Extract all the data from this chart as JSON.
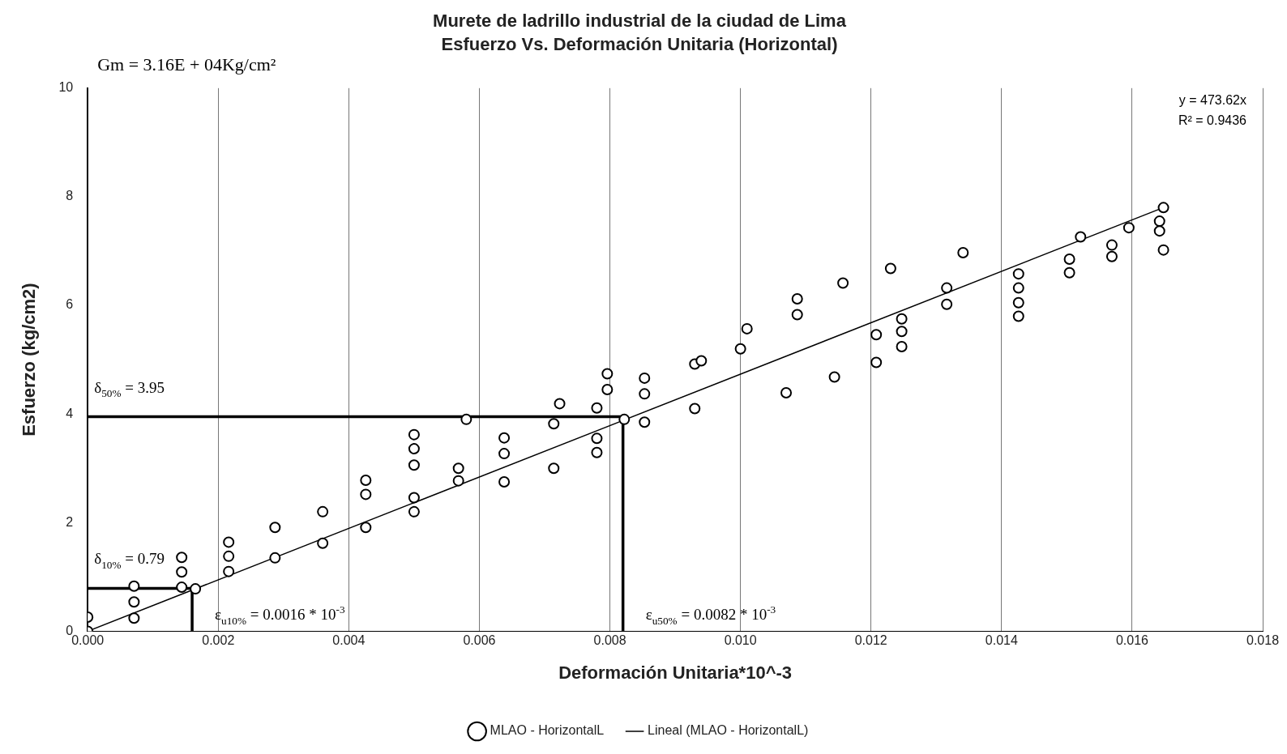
{
  "chart_data": {
    "type": "scatter",
    "title": "Murete de ladrillo industrial de la ciudad de Lima",
    "subtitle": "Esfuerzo Vs. Deformación Unitaria (Horizontal)",
    "xlabel": "Deformación Unitaria*10^-3",
    "ylabel": "Esfuerzo (kg/cm2)",
    "xlim": [
      0,
      0.018
    ],
    "xticks": [
      {
        "value": 0,
        "label": "0.000"
      },
      {
        "value": 0.002,
        "label": "0.002"
      },
      {
        "value": 0.004,
        "label": "0.004"
      },
      {
        "value": 0.006,
        "label": "0.006"
      },
      {
        "value": 0.008,
        "label": "0.008"
      },
      {
        "value": 0.01,
        "label": "0.010"
      },
      {
        "value": 0.012,
        "label": "0.012"
      },
      {
        "value": 0.014,
        "label": "0.014"
      },
      {
        "value": 0.016,
        "label": "0.016"
      },
      {
        "value": 0.018,
        "label": "0.018"
      }
    ],
    "ylim": [
      0,
      10
    ],
    "yticks": [
      0,
      2,
      4,
      6,
      8,
      10
    ],
    "grid": "x",
    "legend": "bottom",
    "series": [
      {
        "name": "MLAO - HorizontalL",
        "marker": "circle",
        "color": "#000000",
        "x": [
          0,
          0,
          0.00071,
          0.00071,
          0.00071,
          0.00144,
          0.00144,
          0.00144,
          0.00165,
          0.00216,
          0.00216,
          0.00216,
          0.00287,
          0.00287,
          0.0036,
          0.0036,
          0.00426,
          0.00426,
          0.00426,
          0.005,
          0.005,
          0.005,
          0.005,
          0.005,
          0.00568,
          0.00568,
          0.0058,
          0.00638,
          0.00638,
          0.00638,
          0.00714,
          0.00714,
          0.00723,
          0.0078,
          0.0078,
          0.0078,
          0.00796,
          0.00796,
          0.00822,
          0.00853,
          0.00853,
          0.00853,
          0.0093,
          0.0093,
          0.0094,
          0.01,
          0.0101,
          0.01087,
          0.01087,
          0.0107,
          0.01144,
          0.01157,
          0.01208,
          0.01208,
          0.0123,
          0.01247,
          0.01247,
          0.01247,
          0.01316,
          0.01316,
          0.01341,
          0.01426,
          0.01426,
          0.01426,
          0.01426,
          0.01504,
          0.01504,
          0.01521,
          0.01569,
          0.01569,
          0.01595,
          0.01642,
          0.01642,
          0.01648,
          0.01648
        ],
        "values": [
          0.26,
          0,
          0.83,
          0.54,
          0.24,
          1.36,
          1.09,
          0.81,
          0.78,
          1.64,
          1.38,
          1.1,
          1.91,
          1.35,
          2.2,
          1.62,
          2.78,
          2.52,
          1.91,
          3.62,
          3.36,
          3.06,
          2.46,
          2.2,
          3.0,
          2.77,
          3.9,
          3.56,
          3.27,
          2.75,
          3.0,
          3.82,
          4.19,
          4.11,
          3.55,
          3.29,
          4.74,
          4.45,
          3.9,
          4.66,
          4.37,
          3.85,
          4.92,
          4.1,
          4.98,
          5.2,
          5.57,
          6.12,
          5.83,
          4.39,
          4.68,
          6.41,
          5.46,
          4.95,
          6.68,
          5.75,
          5.52,
          5.24,
          6.32,
          6.02,
          6.97,
          6.58,
          6.32,
          6.05,
          5.8,
          6.85,
          6.6,
          7.26,
          7.11,
          6.9,
          7.43,
          7.55,
          7.37,
          7.8,
          7.02
        ]
      },
      {
        "name": "Lineal (MLAO - HorizontalL)",
        "type": "line",
        "color": "#000000",
        "x": [
          0,
          0.0165
        ],
        "values": [
          0,
          7.81
        ]
      },
      {
        "type": "line",
        "color": "#000000",
        "x": [
          0,
          0.0082,
          0.0082
        ],
        "values": [
          3.95,
          3.95,
          0
        ]
      },
      {
        "type": "line",
        "color": "#000000",
        "x": [
          0,
          0.0016,
          0.0016
        ],
        "values": [
          0.79,
          0.79,
          0
        ]
      }
    ],
    "annotations": [
      "Gm = 3.16E + 04Kg/cm²",
      "y = 473.62x",
      "R² = 0.9436",
      {
        "text": "δ$_{50%}$ = 3.95",
        "x": 0,
        "y": 3.95
      },
      {
        "text": "δ$_{10%}$ = 0.79",
        "x": 0,
        "y": 0.79
      },
      {
        "text": "ε$_{u10%}$ = 0.0016 * 10$^{-3}$",
        "x": 0.0016,
        "y": 0
      },
      {
        "text": "ε$_{u50%}$ = 0.0082 * 10$^{-3}$",
        "x": 0.0082,
        "y": 0
      }
    ]
  }
}
